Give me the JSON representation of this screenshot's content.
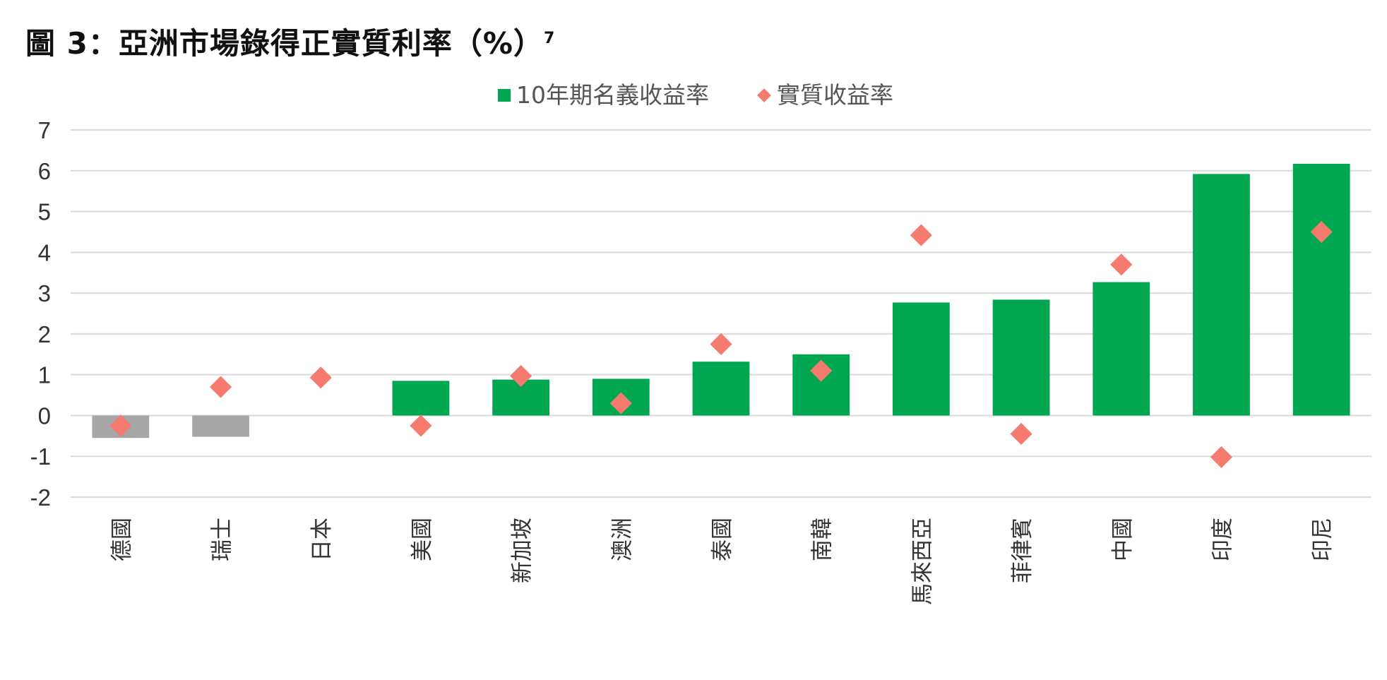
{
  "title": "圖 3：亞洲市場錄得正實質利率（%）",
  "title_sup": "7",
  "chart_data": {
    "type": "bar",
    "categories": [
      "德國",
      "瑞士",
      "日本",
      "美國",
      "新加坡",
      "澳洲",
      "泰國",
      "南韓",
      "馬來西亞",
      "菲律賓",
      "中國",
      "印度",
      "印尼"
    ],
    "series": [
      {
        "name": "10年期名義收益率",
        "kind": "bar",
        "values": [
          -0.55,
          -0.52,
          0.0,
          0.85,
          0.88,
          0.9,
          1.32,
          1.5,
          2.77,
          2.84,
          3.27,
          5.92,
          6.17
        ]
      },
      {
        "name": "實質收益率",
        "kind": "scatter",
        "values": [
          -0.25,
          0.7,
          0.93,
          -0.25,
          0.97,
          0.3,
          1.75,
          1.1,
          4.42,
          -0.45,
          3.7,
          -1.02,
          4.5
        ]
      }
    ],
    "yticks": [
      -2,
      -1,
      0,
      1,
      2,
      3,
      4,
      5,
      6,
      7
    ],
    "ylim": [
      -2,
      7
    ],
    "grid": true,
    "legend_position": "top-center",
    "colors": {
      "positive_bar": "#00A650",
      "negative_bar": "#A6A6A6",
      "marker": "#F47B6E",
      "grid": "#D9D9D9"
    }
  }
}
